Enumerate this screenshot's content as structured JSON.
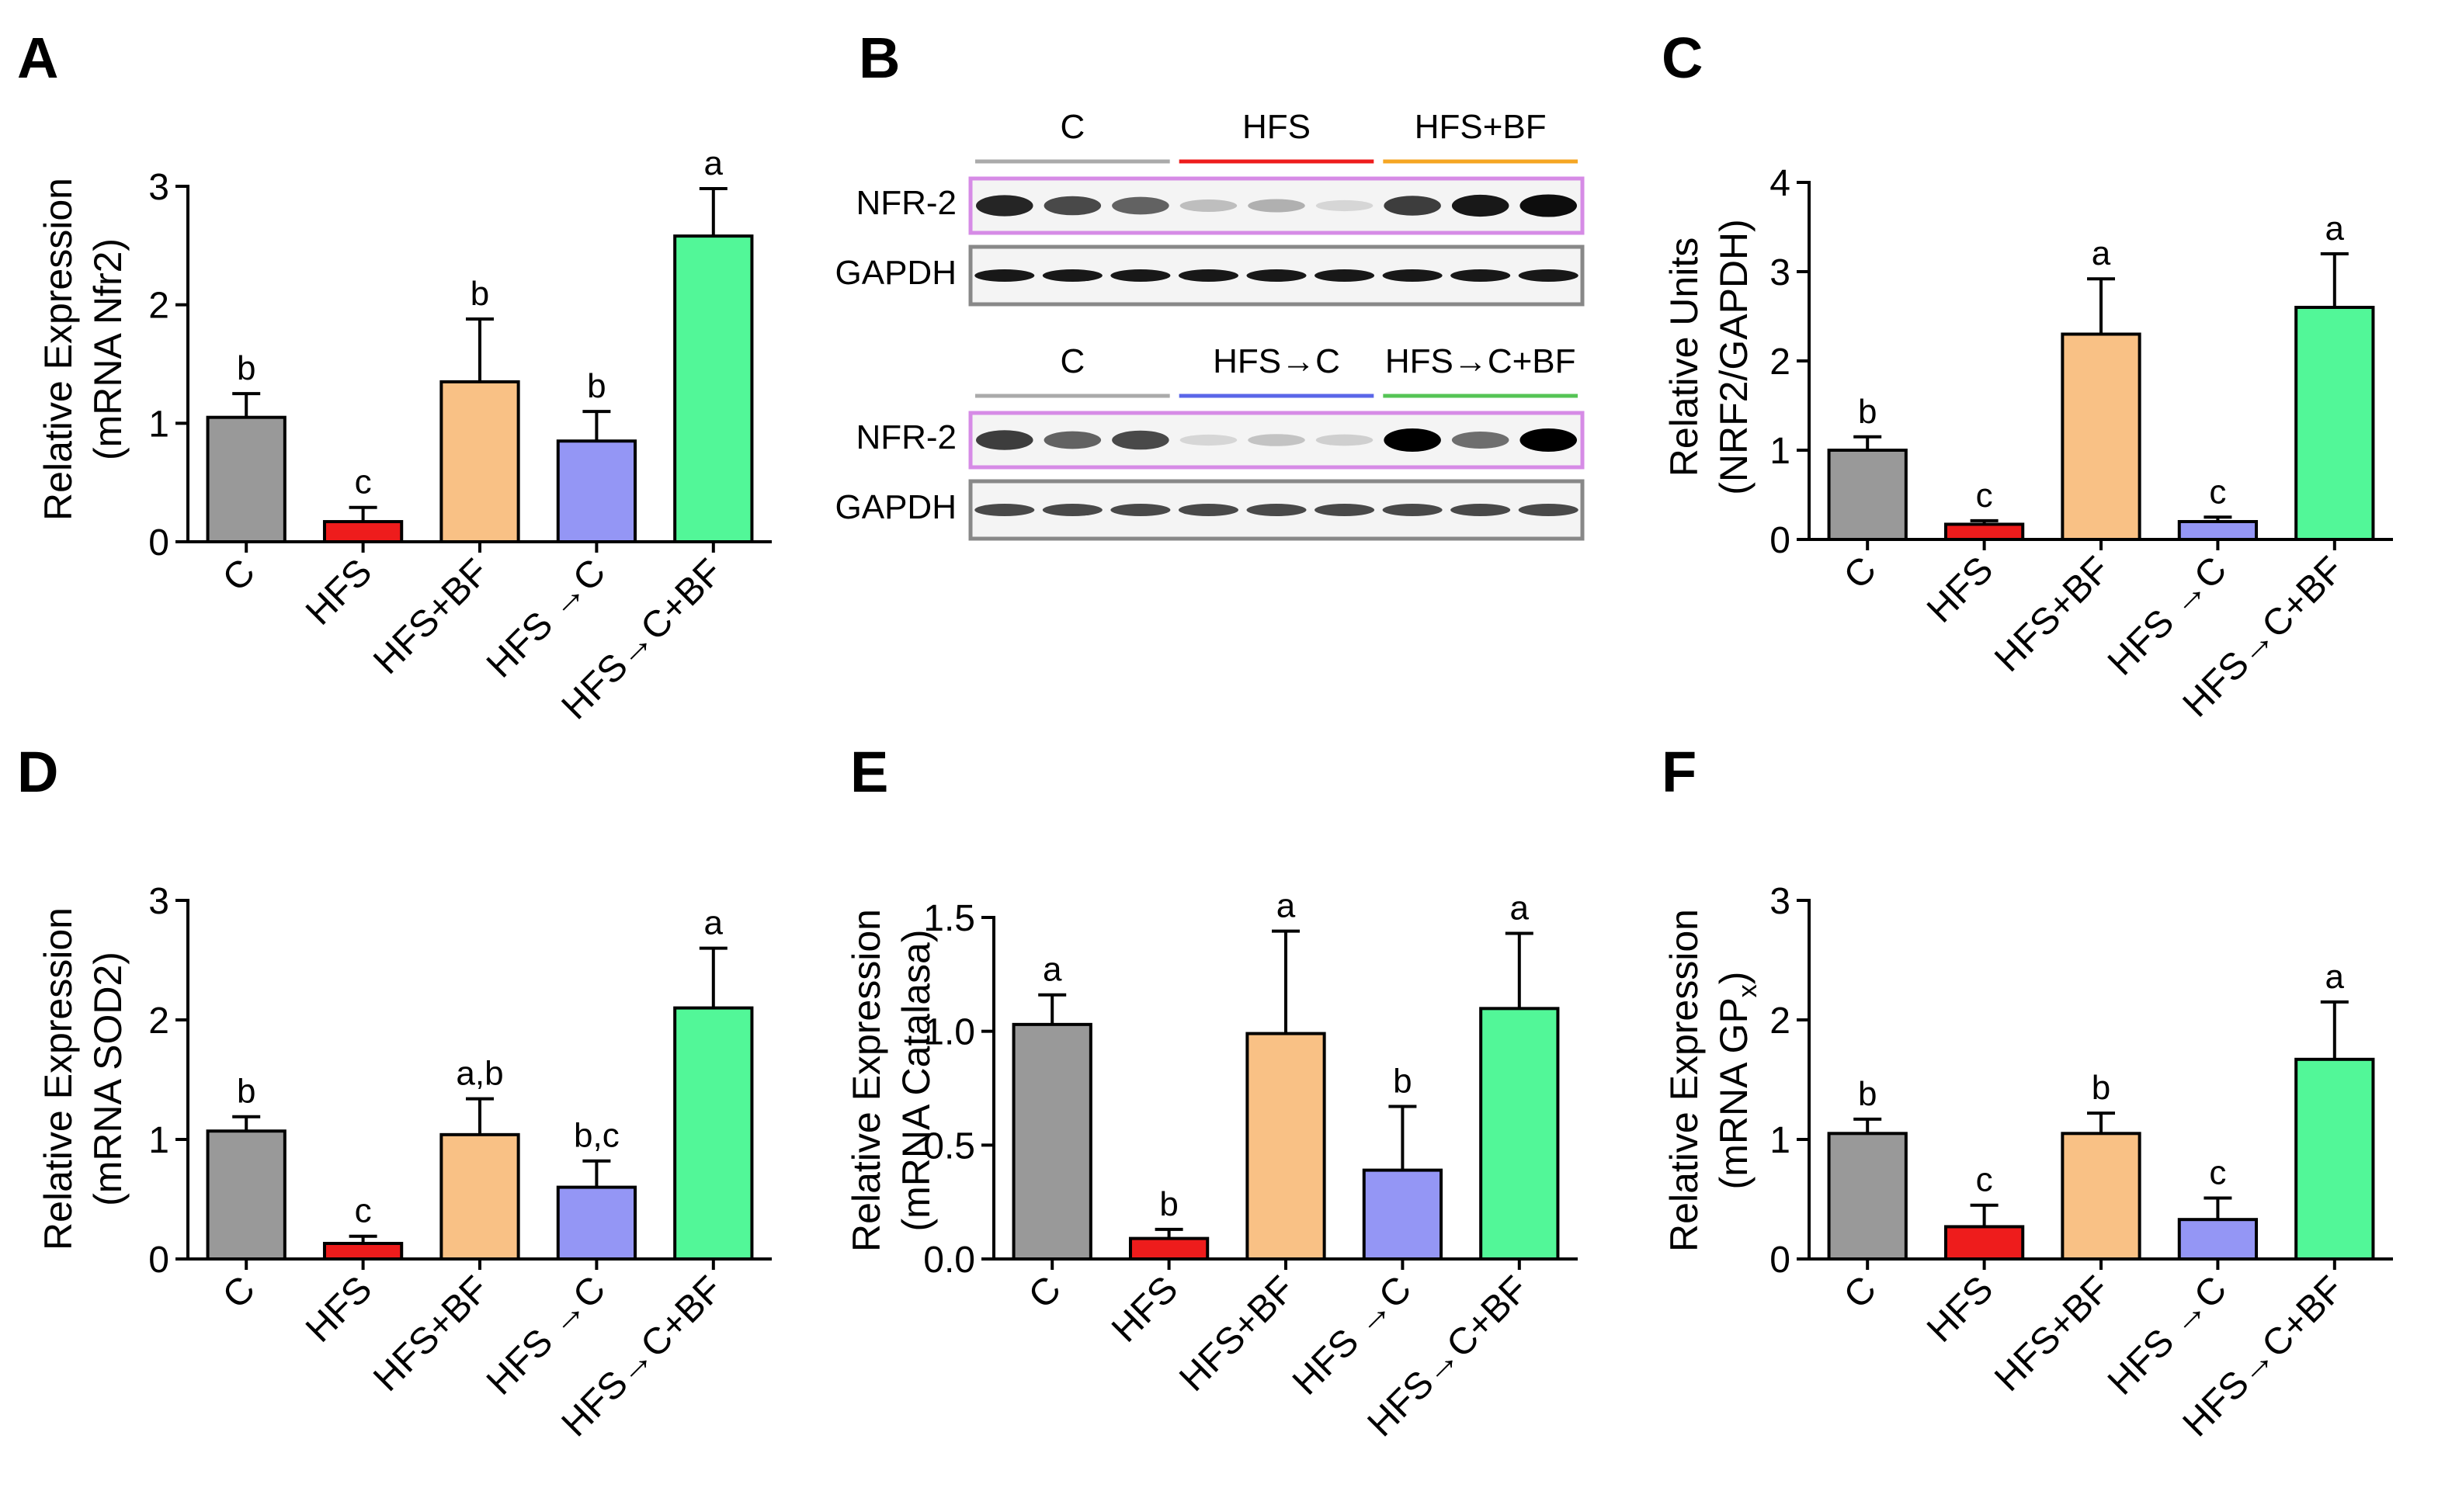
{
  "colors": {
    "C": "#999999",
    "HFS": "#ee1c1c",
    "HFS+BF": "#f9c185",
    "HFS→C": "#9496f5",
    "HFS→C+BF": "#52f798",
    "axis": "#000000"
  },
  "chart_data": [
    {
      "panel": "A",
      "type": "bar",
      "ylabel_line1": "Relative Expression",
      "ylabel_line2": "(mRNA Nfr2)",
      "categories": [
        "C",
        "HFS",
        "HFS+BF",
        "HFS →C",
        "HFS→C+BF"
      ],
      "ylim": [
        0,
        3
      ],
      "yticks": [
        "0",
        "1",
        "2",
        "3"
      ],
      "values": [
        1.05,
        0.17,
        1.35,
        0.85,
        2.58
      ],
      "errors": [
        0.2,
        0.12,
        0.53,
        0.25,
        0.4
      ],
      "letters": [
        "b",
        "c",
        "b",
        "b",
        "a"
      ]
    },
    {
      "panel": "C",
      "type": "bar",
      "ylabel_line1": "Relative Units",
      "ylabel_line2": "(NRF2/GAPDH)",
      "categories": [
        "C",
        "HFS",
        "HFS+BF",
        "HFS →C",
        "HFS→C+BF"
      ],
      "ylim": [
        0,
        4
      ],
      "yticks": [
        "0",
        "1",
        "2",
        "3",
        "4"
      ],
      "values": [
        1.0,
        0.17,
        2.3,
        0.2,
        2.6
      ],
      "errors": [
        0.15,
        0.04,
        0.62,
        0.05,
        0.6
      ],
      "letters": [
        "b",
        "c",
        "a",
        "c",
        "a"
      ]
    },
    {
      "panel": "D",
      "type": "bar",
      "ylabel_line1": "Relative Expression",
      "ylabel_line2": "(mRNA SOD2)",
      "categories": [
        "C",
        "HFS",
        "HFS+BF",
        "HFS →C",
        "HFS→C+BF"
      ],
      "ylim": [
        0,
        3
      ],
      "yticks": [
        "0",
        "1",
        "2",
        "3"
      ],
      "values": [
        1.07,
        0.13,
        1.04,
        0.6,
        2.1
      ],
      "errors": [
        0.12,
        0.06,
        0.3,
        0.22,
        0.5
      ],
      "letters": [
        "b",
        "c",
        "a,b",
        "b,c",
        "a"
      ]
    },
    {
      "panel": "E",
      "type": "bar",
      "ylabel_line1": "Relative Expression",
      "ylabel_line2": "(mRNA Catalasa)",
      "categories": [
        "C",
        "HFS",
        "HFS+BF",
        "HFS →C",
        "HFS→C+BF"
      ],
      "ylim": [
        0,
        1.5
      ],
      "yticks": [
        "0.0",
        "0.5",
        "1.0",
        "1.5"
      ],
      "values": [
        1.03,
        0.09,
        0.99,
        0.39,
        1.1
      ],
      "errors": [
        0.13,
        0.04,
        0.45,
        0.28,
        0.33
      ],
      "letters": [
        "a",
        "b",
        "a",
        "b",
        "a"
      ]
    },
    {
      "panel": "F",
      "type": "bar",
      "ylabel_line1": "Relative Expression",
      "ylabel_line2": "(mRNA GP",
      "ylabel_sub": "x",
      "ylabel_close": ")",
      "categories": [
        "C",
        "HFS",
        "HFS+BF",
        "HFS →C",
        "HFS→C+BF"
      ],
      "ylim": [
        0,
        3
      ],
      "yticks": [
        "0",
        "1",
        "2",
        "3"
      ],
      "values": [
        1.05,
        0.27,
        1.05,
        0.33,
        1.67
      ],
      "errors": [
        0.12,
        0.18,
        0.17,
        0.18,
        0.48
      ],
      "letters": [
        "b",
        "c",
        "b",
        "c",
        "a"
      ]
    }
  ],
  "western_blot": {
    "panel": "B",
    "top": {
      "groups": [
        "C",
        "HFS",
        "HFS+BF"
      ],
      "rows": [
        "NFR-2",
        "GAPDH"
      ],
      "nfr2_intensity": [
        0.85,
        0.7,
        0.6,
        0.22,
        0.28,
        0.12,
        0.75,
        0.9,
        0.95
      ],
      "gapdh_intensity": [
        0.9,
        0.9,
        0.9,
        0.9,
        0.9,
        0.9,
        0.9,
        0.9,
        0.9
      ]
    },
    "bottom": {
      "groups": [
        "C",
        "HFS→C",
        "HFS→C+BF"
      ],
      "rows": [
        "NFR-2",
        "GAPDH"
      ],
      "nfr2_intensity": [
        0.75,
        0.6,
        0.7,
        0.12,
        0.2,
        0.15,
        1.0,
        0.55,
        1.0
      ],
      "gapdh_intensity": [
        0.7,
        0.7,
        0.7,
        0.7,
        0.7,
        0.7,
        0.7,
        0.7,
        0.7
      ]
    }
  }
}
